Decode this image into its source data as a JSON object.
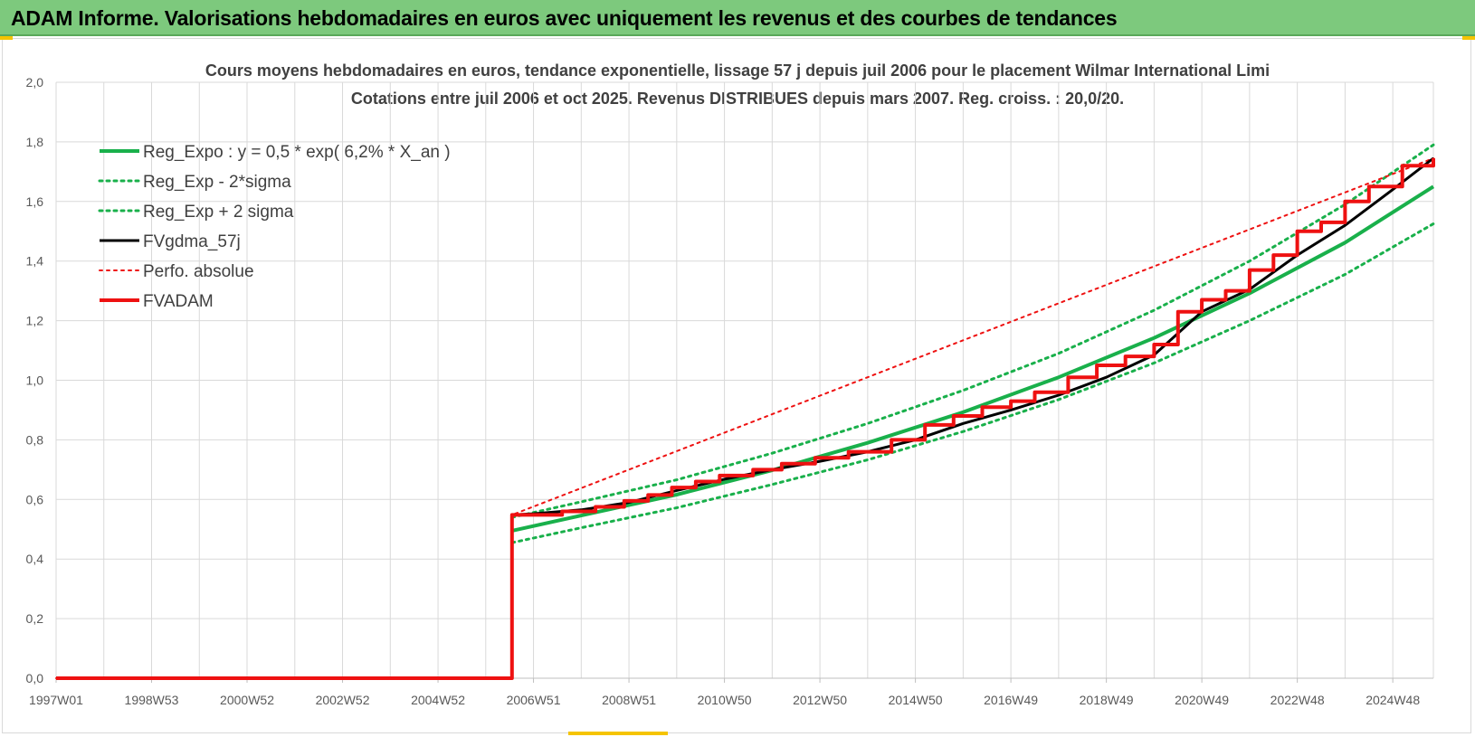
{
  "banner": {
    "title": "ADAM Informe. Valorisations hebdomadaires en euros avec uniquement les revenus et des courbes de tendances"
  },
  "colors": {
    "banner_bg": "#7dc97d",
    "green": "#19b04b",
    "red": "#ee1111",
    "black": "#000000",
    "grid": "#d9d9d9",
    "accent": "#f5c400"
  },
  "chart_data": {
    "type": "line",
    "title_line1": "Cours moyens hebdomadaires en euros, tendance exponentielle, lissage 57 j depuis juil 2006 pour le placement Wilmar International Limi",
    "title_line2": "Cotations entre juil 2006 et oct 2025. Revenus DISTRIBUES depuis mars 2007. Reg. croiss. : 20,0/20.",
    "x_ticks": [
      "1997W01",
      "1998W53",
      "2000W52",
      "2002W52",
      "2004W52",
      "2006W51",
      "2008W51",
      "2010W50",
      "2012W50",
      "2014W50",
      "2016W49",
      "2018W49",
      "2020W49",
      "2022W48",
      "2024W48"
    ],
    "x_tick_years": [
      1997.0,
      1999.0,
      2001.0,
      2003.0,
      2005.0,
      2007.0,
      2009.0,
      2011.0,
      2013.0,
      2015.0,
      2017.0,
      2019.0,
      2021.0,
      2023.0,
      2025.0
    ],
    "xlim": [
      1997.0,
      2025.85
    ],
    "y_ticks": [
      "0,0",
      "0,2",
      "0,4",
      "0,6",
      "0,8",
      "1,0",
      "1,2",
      "1,4",
      "1,6",
      "1,8",
      "2,0"
    ],
    "ylim": [
      0,
      2.0
    ],
    "grid": true,
    "legend_position": "top-left",
    "series": [
      {
        "name": "Reg_Expo : y = 0,5 * exp( 6,2% *  X_an )",
        "color": "#19b04b",
        "style": "solid",
        "width": 4,
        "x": [
          2006.55,
          2008.0,
          2010.0,
          2012.0,
          2014.0,
          2016.0,
          2018.0,
          2020.0,
          2022.0,
          2024.0,
          2025.85
        ],
        "y": [
          0.495,
          0.546,
          0.616,
          0.698,
          0.79,
          0.893,
          1.01,
          1.142,
          1.292,
          1.462,
          1.65
        ]
      },
      {
        "name": "Reg_Exp - 2*sigma",
        "color": "#19b04b",
        "style": "dotted",
        "width": 3,
        "x": [
          2006.55,
          2008.0,
          2010.0,
          2012.0,
          2014.0,
          2016.0,
          2018.0,
          2020.0,
          2022.0,
          2024.0,
          2025.85
        ],
        "y": [
          0.455,
          0.505,
          0.572,
          0.65,
          0.733,
          0.828,
          0.935,
          1.058,
          1.2,
          1.355,
          1.525
        ]
      },
      {
        "name": "Reg_Exp + 2 sigma",
        "color": "#19b04b",
        "style": "dotted",
        "width": 3,
        "x": [
          2006.55,
          2008.0,
          2010.0,
          2012.0,
          2014.0,
          2016.0,
          2018.0,
          2020.0,
          2022.0,
          2024.0,
          2025.85
        ],
        "y": [
          0.54,
          0.592,
          0.666,
          0.755,
          0.855,
          0.966,
          1.09,
          1.235,
          1.4,
          1.59,
          1.79
        ]
      },
      {
        "name": "FVgdma_57j",
        "color": "#000000",
        "style": "solid",
        "width": 3,
        "x": [
          1997.0,
          2006.55,
          2006.55,
          2007.0,
          2008.0,
          2009.0,
          2010.0,
          2011.0,
          2012.0,
          2013.0,
          2014.0,
          2015.0,
          2016.0,
          2017.0,
          2018.0,
          2019.0,
          2020.0,
          2021.0,
          2022.0,
          2023.0,
          2024.0,
          2025.0,
          2025.85
        ],
        "y": [
          0,
          0,
          0.548,
          0.552,
          0.565,
          0.59,
          0.63,
          0.668,
          0.7,
          0.728,
          0.76,
          0.8,
          0.855,
          0.9,
          0.95,
          1.01,
          1.085,
          1.23,
          1.305,
          1.42,
          1.52,
          1.64,
          1.745
        ]
      },
      {
        "name": "Perfo. absolue",
        "color": "#ee1111",
        "style": "dotted",
        "width": 2,
        "x": [
          1997.0,
          2006.55,
          2006.55,
          2025.85
        ],
        "y": [
          0,
          0,
          0.548,
          1.745
        ]
      },
      {
        "name": "FVADAM",
        "color": "#ee1111",
        "style": "step",
        "width": 4,
        "x": [
          1997.0,
          2006.55,
          2006.55,
          2007.6,
          2008.3,
          2008.9,
          2009.4,
          2009.9,
          2010.4,
          2010.9,
          2011.6,
          2012.2,
          2012.9,
          2013.6,
          2014.5,
          2015.2,
          2015.8,
          2016.4,
          2017.0,
          2017.5,
          2018.2,
          2018.8,
          2019.4,
          2020.0,
          2020.5,
          2021.0,
          2021.5,
          2022.0,
          2022.5,
          2023.0,
          2023.5,
          2024.0,
          2024.5,
          2025.2,
          2025.85
        ],
        "y": [
          0,
          0,
          0.548,
          0.56,
          0.575,
          0.595,
          0.615,
          0.64,
          0.66,
          0.68,
          0.7,
          0.72,
          0.74,
          0.76,
          0.8,
          0.85,
          0.88,
          0.91,
          0.93,
          0.96,
          1.01,
          1.05,
          1.08,
          1.12,
          1.23,
          1.27,
          1.3,
          1.37,
          1.42,
          1.5,
          1.53,
          1.6,
          1.65,
          1.72,
          1.745
        ]
      }
    ]
  }
}
